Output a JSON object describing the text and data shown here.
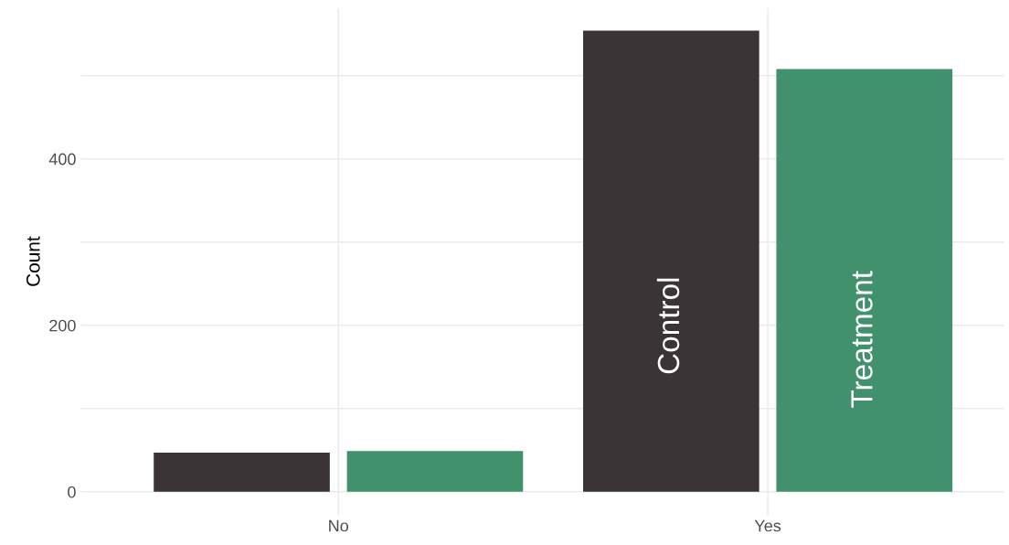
{
  "chart_data": {
    "type": "bar",
    "ylabel": "Count",
    "categories": [
      "No",
      "Yes"
    ],
    "series": [
      {
        "name": "Control",
        "color": "#3a3436",
        "values": [
          47,
          554
        ]
      },
      {
        "name": "Treatment",
        "color": "#40916c",
        "values": [
          49,
          508
        ]
      }
    ],
    "ylim": [
      -28,
      581
    ],
    "yticks": [
      0,
      {
        "value": 100,
        "label": null
      },
      200,
      {
        "value": 300,
        "label": null
      },
      400,
      {
        "value": 500,
        "label": null
      }
    ],
    "grid": true,
    "legend": false
  }
}
